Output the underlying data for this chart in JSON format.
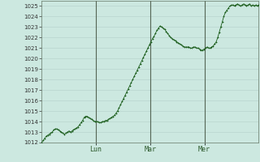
{
  "bg_color": "#cce8e0",
  "plot_bg_color": "#cce8e0",
  "grid_color": "#b8d4ce",
  "line_color": "#1a5c1a",
  "marker_color": "#1a5c1a",
  "ylim": [
    1012,
    1025.5
  ],
  "ytick_min": 1012,
  "ytick_max": 1025,
  "day_labels": [
    "Lun",
    "Mar",
    "Mer"
  ],
  "day_label_color": "#2d5a2d",
  "vline_color": "#556655",
  "data_y": [
    1012.0,
    1012.2,
    1012.4,
    1012.6,
    1012.7,
    1012.8,
    1012.9,
    1013.0,
    1013.2,
    1013.3,
    1013.3,
    1013.2,
    1013.1,
    1013.0,
    1012.9,
    1012.8,
    1012.9,
    1013.0,
    1013.1,
    1013.0,
    1013.1,
    1013.2,
    1013.3,
    1013.4,
    1013.5,
    1013.7,
    1013.9,
    1014.1,
    1014.4,
    1014.5,
    1014.5,
    1014.4,
    1014.3,
    1014.2,
    1014.1,
    1014.0,
    1014.0,
    1014.0,
    1013.9,
    1013.9,
    1014.0,
    1014.0,
    1014.1,
    1014.1,
    1014.2,
    1014.3,
    1014.4,
    1014.5,
    1014.6,
    1014.8,
    1015.0,
    1015.3,
    1015.6,
    1015.9,
    1016.2,
    1016.5,
    1016.8,
    1017.1,
    1017.4,
    1017.7,
    1018.0,
    1018.3,
    1018.6,
    1018.9,
    1019.2,
    1019.5,
    1019.8,
    1020.1,
    1020.4,
    1020.7,
    1021.0,
    1021.3,
    1021.6,
    1021.9,
    1022.1,
    1022.4,
    1022.7,
    1022.9,
    1023.1,
    1023.0,
    1022.9,
    1022.8,
    1022.6,
    1022.4,
    1022.2,
    1022.0,
    1021.9,
    1021.8,
    1021.7,
    1021.6,
    1021.5,
    1021.4,
    1021.3,
    1021.2,
    1021.1,
    1021.1,
    1021.1,
    1021.1,
    1021.0,
    1021.0,
    1021.1,
    1021.1,
    1021.0,
    1021.0,
    1020.9,
    1020.8,
    1020.8,
    1020.9,
    1021.0,
    1021.1,
    1021.0,
    1021.0,
    1021.1,
    1021.2,
    1021.4,
    1021.6,
    1022.0,
    1022.5,
    1023.0,
    1023.5,
    1024.0,
    1024.4,
    1024.6,
    1024.8,
    1025.0,
    1025.1,
    1025.1,
    1025.0,
    1025.1,
    1025.2,
    1025.1,
    1025.0,
    1025.1,
    1025.2,
    1025.1,
    1025.0,
    1025.1,
    1025.2,
    1025.0,
    1025.1,
    1025.0,
    1025.1,
    1025.0,
    1025.1
  ]
}
